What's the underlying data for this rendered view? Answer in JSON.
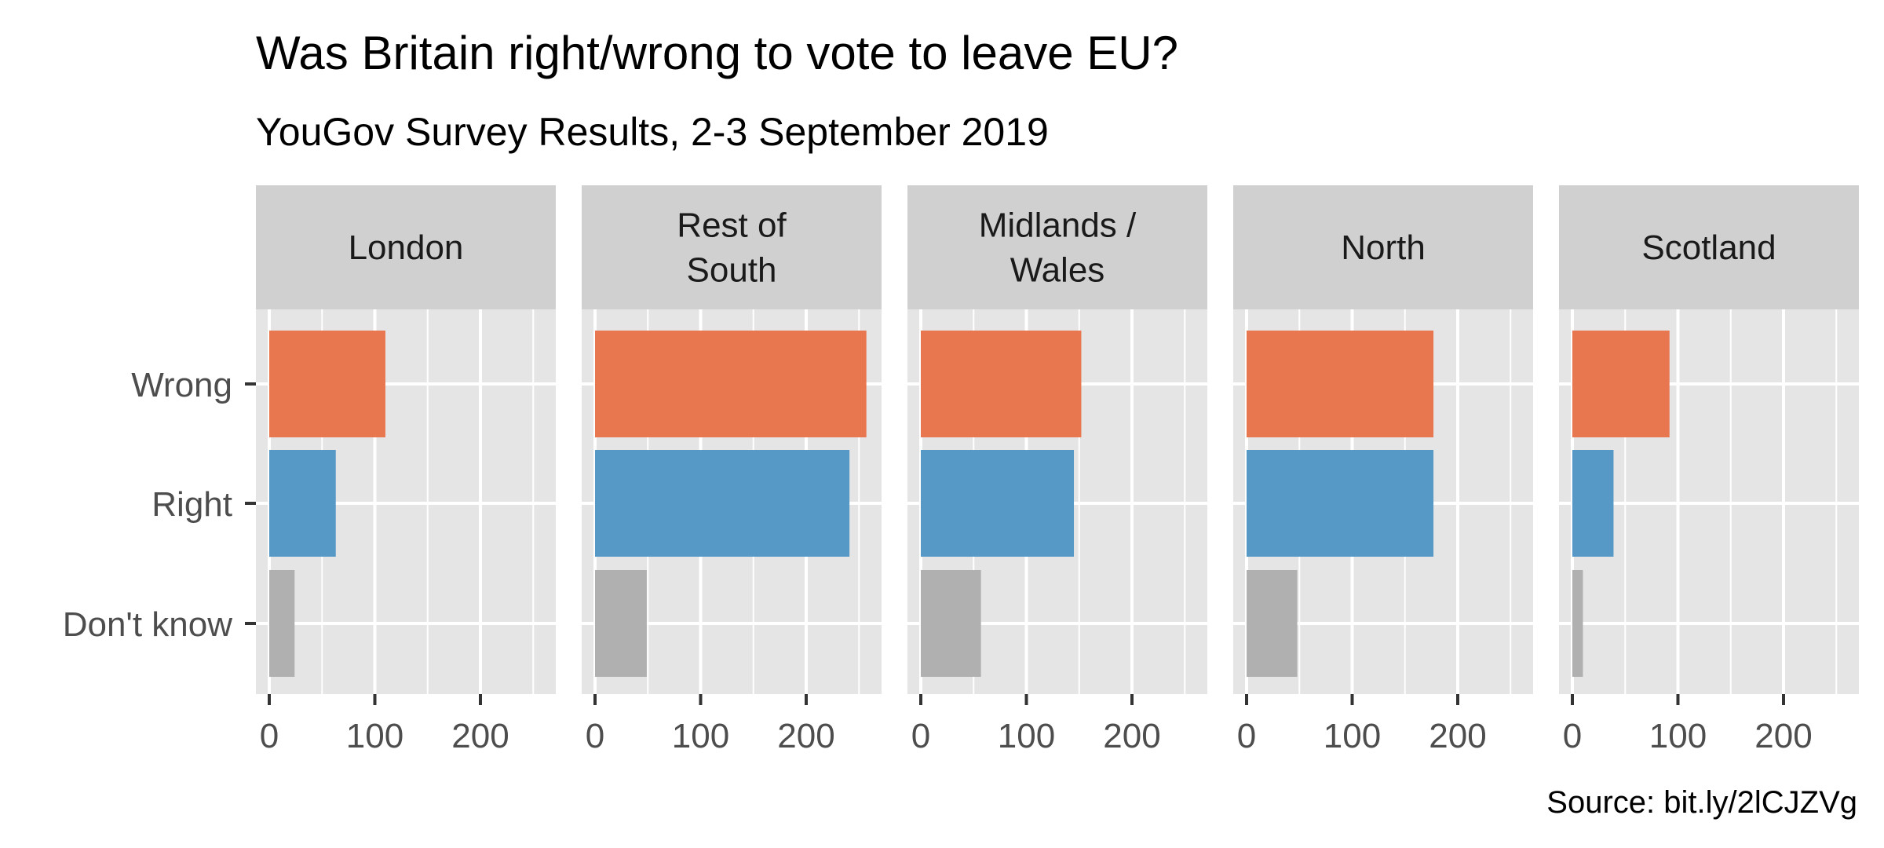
{
  "chart_data": {
    "type": "bar",
    "orientation": "horizontal",
    "title": "Was Britain right/wrong to vote to leave EU?",
    "subtitle": "YouGov Survey Results, 2-3 September 2019",
    "caption": "Source: bit.ly/2lCJZVg",
    "categories": [
      "Wrong",
      "Right",
      "Don't know"
    ],
    "category_colors": [
      "#E8764F",
      "#5699C6",
      "#B0B0B0"
    ],
    "xlim": [
      0,
      270
    ],
    "x_ticks": [
      0,
      100,
      200
    ],
    "x_tick_labels": [
      "0",
      "100",
      "200"
    ],
    "grid": true,
    "legend": "none",
    "facets": [
      {
        "label": [
          "London"
        ],
        "values": [
          110,
          63,
          24
        ]
      },
      {
        "label": [
          "Rest of",
          "South"
        ],
        "values": [
          257,
          241,
          49
        ]
      },
      {
        "label": [
          "Midlands /",
          "Wales"
        ],
        "values": [
          152,
          145,
          57
        ]
      },
      {
        "label": [
          "North"
        ],
        "values": [
          177,
          177,
          48
        ]
      },
      {
        "label": [
          "Scotland"
        ],
        "values": [
          92,
          39,
          10
        ]
      }
    ]
  },
  "colors": {
    "panel_bg": "#E5E5E5",
    "strip_bg": "#D0D0D0",
    "grid": "#FFFFFF"
  }
}
